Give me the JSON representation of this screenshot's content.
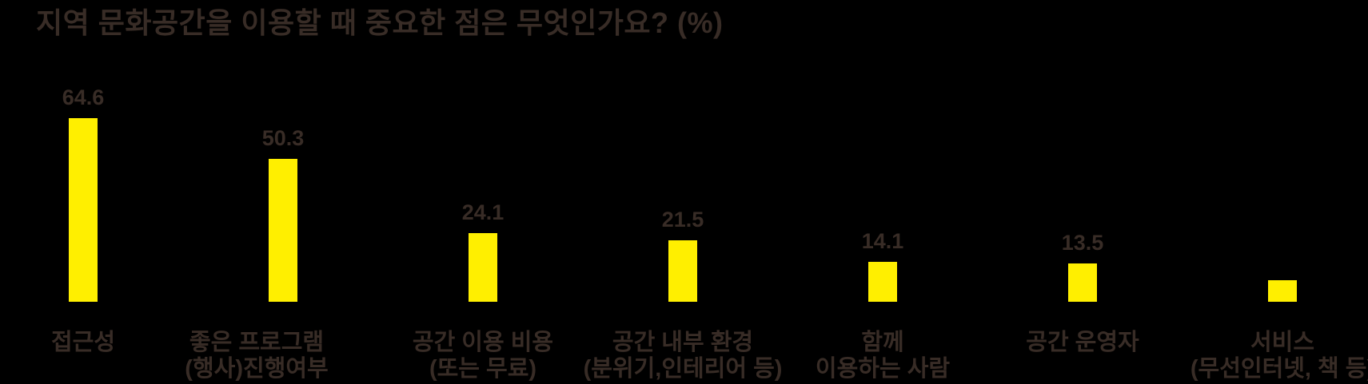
{
  "page": {
    "background_color": "#000000"
  },
  "chart_data": {
    "type": "bar",
    "orientation": "vertical",
    "title": "지역 문화공간을 이용할 때 중요한 점은 무엇인가요? (%)",
    "unit": "%",
    "categories": [
      {
        "lines": [
          "접근성"
        ],
        "label_offset_x": 0
      },
      {
        "lines": [
          "좋은 프로그램",
          "(행사)진행여부"
        ],
        "label_offset_x": -33
      },
      {
        "lines": [
          "공간 이용 비용",
          "(또는 무료)"
        ],
        "label_offset_x": 0
      },
      {
        "lines": [
          "공간 내부 환경",
          "(분위기,인테리어 등)"
        ],
        "label_offset_x": 0
      },
      {
        "lines": [
          "함께",
          "이용하는 사람"
        ],
        "label_offset_x": 0
      },
      {
        "lines": [
          "공간 운영자"
        ],
        "label_offset_x": 0
      },
      {
        "lines": [
          "서비스",
          "(무선인터넷, 책 등)"
        ],
        "label_offset_x": 0
      }
    ],
    "values": [
      64.6,
      50.3,
      24.1,
      21.5,
      14.1,
      13.5,
      7.6
    ],
    "value_labels": [
      "64.6",
      "50.3",
      "24.1",
      "21.5",
      "14.1",
      "13.5",
      ""
    ],
    "bar_color": "#ffef00",
    "text_color": "#382c26",
    "background_color": "#000000",
    "ylim": [
      0,
      70
    ],
    "grid": false,
    "legend": false,
    "axis_lines": false
  }
}
